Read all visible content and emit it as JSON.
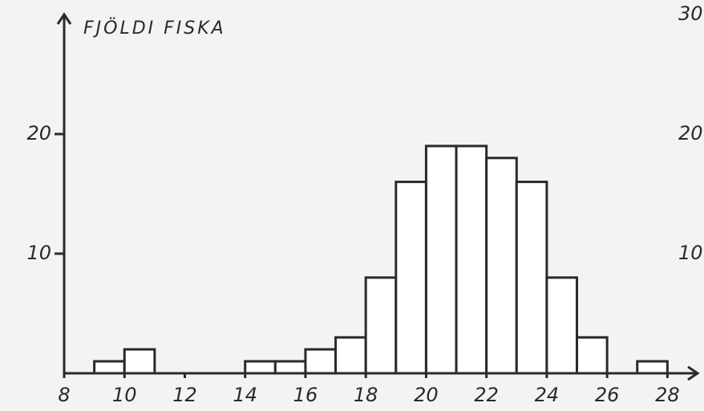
{
  "chart_data": {
    "type": "histogram",
    "title": "FJÖLDI FISKA",
    "bins": [
      8,
      9,
      10,
      11,
      12,
      13,
      14,
      15,
      16,
      17,
      18,
      19,
      20,
      21,
      22,
      23,
      24,
      25,
      26,
      27,
      28
    ],
    "values": [
      0,
      1,
      2,
      0,
      0,
      0,
      1,
      1,
      2,
      3,
      8,
      16,
      19,
      19,
      18,
      16,
      8,
      3,
      0,
      1
    ],
    "color": "#ffffff",
    "xlim": [
      8,
      29
    ],
    "xticks": [
      8,
      10,
      12,
      14,
      16,
      18,
      20,
      22,
      24,
      26,
      28
    ],
    "ylim": [
      0,
      30
    ],
    "yticks": [
      10,
      20
    ],
    "y2lim": [
      0,
      30
    ],
    "y2ticks": [
      10,
      20,
      30
    ]
  }
}
